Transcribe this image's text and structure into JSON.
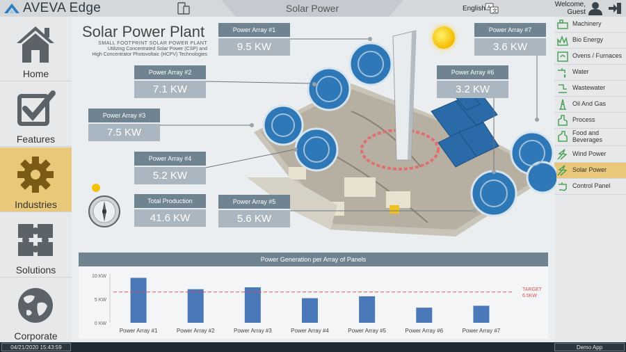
{
  "app": {
    "brand": "AVEVA Edge",
    "screen_title": "Solar Power",
    "language": "English",
    "welcome_line1": "Welcome,",
    "welcome_line2": "Guest"
  },
  "left_nav": [
    {
      "label": "Home",
      "icon": "home-icon",
      "active": false
    },
    {
      "label": "Features",
      "icon": "checkbox-icon",
      "active": false
    },
    {
      "label": "Industries",
      "icon": "gear-icon",
      "active": true
    },
    {
      "label": "Solutions",
      "icon": "puzzle-icon",
      "active": false
    },
    {
      "label": "Corporate",
      "icon": "globe-icon",
      "active": false
    }
  ],
  "right_nav": [
    {
      "label": "Machinery",
      "icon": "machinery-icon"
    },
    {
      "label": "Bio Energy",
      "icon": "bio-energy-icon"
    },
    {
      "label": "Ovens / Furnaces",
      "icon": "oven-icon"
    },
    {
      "label": "Water",
      "icon": "water-icon"
    },
    {
      "label": "Wastewater",
      "icon": "wastewater-icon"
    },
    {
      "label": "Oil And Gas",
      "icon": "oil-gas-icon"
    },
    {
      "label": "Process",
      "icon": "process-icon"
    },
    {
      "label": "Food and Beverages",
      "icon": "food-icon"
    },
    {
      "label": "Wind Power",
      "icon": "wind-icon"
    },
    {
      "label": "Solar Power",
      "icon": "solar-icon",
      "active": true
    },
    {
      "label": "Control Panel",
      "icon": "control-panel-icon"
    }
  ],
  "plant": {
    "title": "Solar Power Plant",
    "subtitle_1": "SMALL FOOTPRINT SOLAR POWER PLANT",
    "subtitle_2": "Utilizing Concentrated Solar Power (CSP) and",
    "subtitle_3": "High Concentrator Photovoltaic (HCPV) Technologies"
  },
  "arrays": [
    {
      "label": "Power Array #1",
      "value": "9.5 KW"
    },
    {
      "label": "Power Array #2",
      "value": "7.1 KW"
    },
    {
      "label": "Power Array #3",
      "value": "7.5 KW"
    },
    {
      "label": "Power Array #4",
      "value": "5.2 KW"
    },
    {
      "label": "Power Array #5",
      "value": "5.6 KW"
    },
    {
      "label": "Power Array #6",
      "value": "3.2 KW"
    },
    {
      "label": "Power Array #7",
      "value": "3.6 KW"
    }
  ],
  "total": {
    "label": "Total Production",
    "value": "41.6 KW"
  },
  "chart_data": {
    "type": "bar",
    "title": "Power Generation per Array of Panels",
    "categories": [
      "Power Array #1",
      "Power Array #2",
      "Power Array #3",
      "Power Array #4",
      "Power Array #5",
      "Power Array #6",
      "Power Array #7"
    ],
    "values": [
      9.5,
      7.1,
      7.5,
      5.2,
      5.6,
      3.2,
      3.6
    ],
    "ylim": [
      0,
      10
    ],
    "yticks": [
      0,
      5,
      10
    ],
    "ytick_labels": [
      "0 KW",
      "5 KW",
      "10 KW"
    ],
    "target": {
      "value": 6.5,
      "label_1": "TARGET",
      "label_2": "6.5KW",
      "color": "#d9534f"
    },
    "bar_color": "#4a78b8",
    "grid": false
  },
  "status": {
    "datetime": "04/21/2020 15:43:59",
    "app_mode": "Demo App"
  },
  "colors": {
    "accent": "#e9c87a",
    "header": "#6f8390",
    "value_box": "#aab7c0"
  }
}
